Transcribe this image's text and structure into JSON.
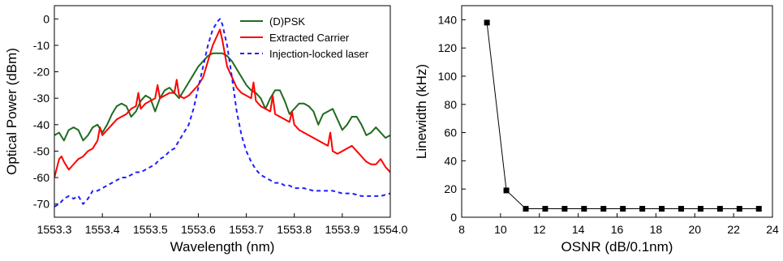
{
  "chart_data": [
    {
      "type": "line",
      "title": "",
      "xlabel": "Wavelength (nm)",
      "ylabel": "Optical Power (dBm)",
      "xlim": [
        1553.3,
        1554.0
      ],
      "ylim": [
        -75,
        5
      ],
      "xticks": [
        1553.3,
        1553.4,
        1553.5,
        1553.6,
        1553.7,
        1553.8,
        1553.9,
        1554.0
      ],
      "xtick_labels": [
        "1553.3",
        "1553.4",
        "1553.5",
        "1553.6",
        "1553.7",
        "1553.8",
        "1553.9",
        "1554.0"
      ],
      "yticks": [
        -70,
        -60,
        -50,
        -40,
        -30,
        -20,
        -10,
        0
      ],
      "ytick_labels": [
        "-70",
        "-60",
        "-50",
        "-40",
        "-30",
        "-20",
        "-10",
        "0"
      ],
      "grid": false,
      "legend_position": "top-right",
      "series": [
        {
          "name": "(D)PSK",
          "color": "#1f6b1f",
          "dash": "solid",
          "x": [
            1553.3,
            1553.31,
            1553.32,
            1553.33,
            1553.34,
            1553.35,
            1553.36,
            1553.37,
            1553.38,
            1553.39,
            1553.4,
            1553.41,
            1553.42,
            1553.43,
            1553.44,
            1553.45,
            1553.46,
            1553.47,
            1553.48,
            1553.49,
            1553.5,
            1553.51,
            1553.52,
            1553.53,
            1553.54,
            1553.55,
            1553.56,
            1553.57,
            1553.58,
            1553.59,
            1553.6,
            1553.61,
            1553.62,
            1553.63,
            1553.64,
            1553.65,
            1553.66,
            1553.67,
            1553.68,
            1553.69,
            1553.7,
            1553.71,
            1553.72,
            1553.73,
            1553.74,
            1553.75,
            1553.76,
            1553.77,
            1553.78,
            1553.79,
            1553.8,
            1553.81,
            1553.82,
            1553.83,
            1553.84,
            1553.85,
            1553.86,
            1553.87,
            1553.88,
            1553.89,
            1553.9,
            1553.91,
            1553.92,
            1553.93,
            1553.94,
            1553.95,
            1553.96,
            1553.97,
            1553.98,
            1553.99,
            1554.0,
            1554.02
          ],
          "y": [
            -44,
            -43,
            -46,
            -42,
            -41,
            -42,
            -46,
            -44,
            -41,
            -40,
            -43,
            -40,
            -36,
            -33,
            -32,
            -33,
            -37,
            -35,
            -31,
            -29,
            -30,
            -35,
            -30,
            -27,
            -26,
            -28,
            -30,
            -27,
            -24,
            -21,
            -18,
            -16,
            -14,
            -13,
            -13,
            -13,
            -14,
            -16,
            -19,
            -22,
            -25,
            -27,
            -28,
            -30,
            -34,
            -30,
            -27,
            -27,
            -31,
            -36,
            -34,
            -32,
            -32,
            -33,
            -35,
            -40,
            -36,
            -35,
            -34,
            -38,
            -42,
            -40,
            -37,
            -37,
            -40,
            -44,
            -43,
            -41,
            -43,
            -45,
            -44,
            -43
          ]
        },
        {
          "name": "Extracted Carrier",
          "color": "#ff0000",
          "dash": "solid",
          "x": [
            1553.3,
            1553.31,
            1553.315,
            1553.32,
            1553.33,
            1553.34,
            1553.35,
            1553.36,
            1553.37,
            1553.38,
            1553.39,
            1553.395,
            1553.4,
            1553.41,
            1553.42,
            1553.43,
            1553.44,
            1553.45,
            1553.46,
            1553.47,
            1553.475,
            1553.48,
            1553.49,
            1553.5,
            1553.51,
            1553.515,
            1553.52,
            1553.53,
            1553.54,
            1553.55,
            1553.555,
            1553.56,
            1553.57,
            1553.58,
            1553.59,
            1553.6,
            1553.61,
            1553.62,
            1553.63,
            1553.64,
            1553.645,
            1553.65,
            1553.66,
            1553.67,
            1553.68,
            1553.69,
            1553.7,
            1553.71,
            1553.715,
            1553.72,
            1553.73,
            1553.74,
            1553.75,
            1553.755,
            1553.76,
            1553.77,
            1553.78,
            1553.79,
            1553.795,
            1553.8,
            1553.81,
            1553.82,
            1553.83,
            1553.84,
            1553.85,
            1553.86,
            1553.87,
            1553.875,
            1553.88,
            1553.89,
            1553.9,
            1553.91,
            1553.92,
            1553.93,
            1553.94,
            1553.95,
            1553.96,
            1553.97,
            1553.98,
            1553.99,
            1554.0,
            1554.02
          ],
          "y": [
            -60,
            -53,
            -52,
            -54,
            -57,
            -55,
            -53,
            -52,
            -50,
            -49,
            -46,
            -41,
            -44,
            -42,
            -40,
            -38,
            -37,
            -36,
            -34,
            -33,
            -28,
            -34,
            -32,
            -31,
            -30,
            -25,
            -30,
            -29,
            -28,
            -28,
            -23,
            -29,
            -30,
            -29,
            -27,
            -25,
            -22,
            -16,
            -10,
            -6,
            -4,
            -8,
            -18,
            -22,
            -26,
            -28,
            -29,
            -30,
            -24,
            -31,
            -33,
            -34,
            -35,
            -29,
            -36,
            -37,
            -38,
            -39,
            -35,
            -40,
            -42,
            -43,
            -44,
            -45,
            -46,
            -47,
            -48,
            -43,
            -50,
            -51,
            -50,
            -49,
            -48,
            -50,
            -52,
            -54,
            -55,
            -55,
            -53,
            -56,
            -58,
            -60
          ]
        },
        {
          "name": "Injection-locked laser",
          "color": "#1f1fff",
          "dash": "dashed",
          "x": [
            1553.3,
            1553.31,
            1553.32,
            1553.33,
            1553.34,
            1553.35,
            1553.36,
            1553.37,
            1553.38,
            1553.39,
            1553.4,
            1553.41,
            1553.42,
            1553.43,
            1553.44,
            1553.45,
            1553.46,
            1553.47,
            1553.48,
            1553.49,
            1553.5,
            1553.51,
            1553.52,
            1553.53,
            1553.54,
            1553.55,
            1553.56,
            1553.57,
            1553.58,
            1553.59,
            1553.6,
            1553.61,
            1553.62,
            1553.63,
            1553.64,
            1553.645,
            1553.65,
            1553.66,
            1553.67,
            1553.68,
            1553.69,
            1553.7,
            1553.71,
            1553.72,
            1553.73,
            1553.74,
            1553.75,
            1553.76,
            1553.77,
            1553.78,
            1553.79,
            1553.8,
            1553.82,
            1553.84,
            1553.86,
            1553.88,
            1553.9,
            1553.92,
            1553.94,
            1553.96,
            1553.98,
            1554.0,
            1554.02
          ],
          "y": [
            -71,
            -70,
            -68,
            -67,
            -68,
            -67,
            -70,
            -68,
            -65,
            -65,
            -64,
            -63,
            -62,
            -61,
            -60,
            -60,
            -59,
            -58,
            -58,
            -57,
            -56,
            -55,
            -53,
            -52,
            -50,
            -49,
            -46,
            -43,
            -40,
            -34,
            -26,
            -18,
            -10,
            -4,
            -1,
            0,
            -2,
            -10,
            -22,
            -35,
            -44,
            -50,
            -54,
            -57,
            -59,
            -60,
            -61,
            -62,
            -62,
            -63,
            -63,
            -64,
            -64,
            -65,
            -65,
            -65,
            -66,
            -66,
            -67,
            -67,
            -67,
            -66,
            -66
          ]
        }
      ]
    },
    {
      "type": "line",
      "title": "",
      "xlabel": "OSNR (dB/0.1nm)",
      "ylabel": "Linewidth (kHz)",
      "xlim": [
        8,
        24
      ],
      "ylim": [
        0,
        150
      ],
      "xticks": [
        8,
        10,
        12,
        14,
        16,
        18,
        20,
        22,
        24
      ],
      "xtick_labels": [
        "8",
        "10",
        "12",
        "14",
        "16",
        "18",
        "20",
        "22",
        "24"
      ],
      "yticks": [
        0,
        20,
        40,
        60,
        80,
        100,
        120,
        140
      ],
      "ytick_labels": [
        "0",
        "20",
        "40",
        "60",
        "80",
        "100",
        "120",
        "140"
      ],
      "grid": false,
      "marker": "square",
      "series": [
        {
          "color": "#000000",
          "x": [
            9.3,
            10.3,
            11.3,
            12.3,
            13.3,
            14.3,
            15.3,
            16.3,
            17.3,
            18.3,
            19.3,
            20.3,
            21.3,
            22.3,
            23.3
          ],
          "y": [
            138,
            19,
            6,
            6,
            6,
            6,
            6,
            6,
            6,
            6,
            6,
            6,
            6,
            6,
            6
          ]
        }
      ]
    }
  ]
}
